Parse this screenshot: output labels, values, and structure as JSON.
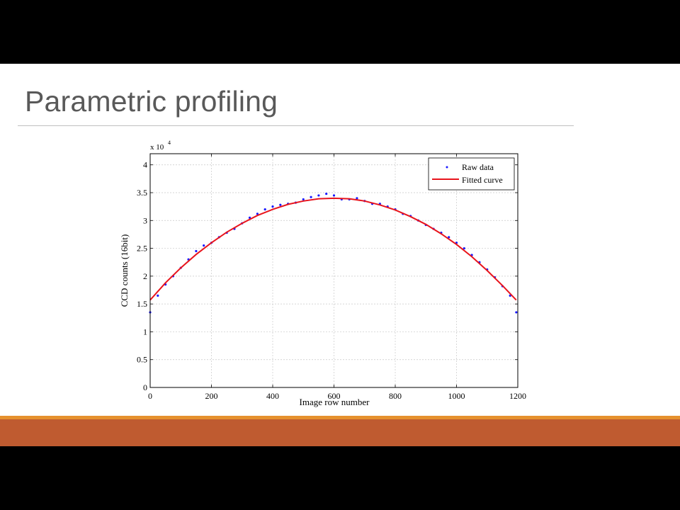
{
  "slide": {
    "title": "Parametric profiling"
  },
  "colors": {
    "raw": "#1a1aff",
    "fit": "#e8141c",
    "accent_orange": "#e6912e",
    "footer": "#bf5b30",
    "title": "#595959"
  },
  "chart_data": {
    "type": "scatter",
    "title": "",
    "xlabel": "Image row number",
    "ylabel": "CCD counts (16bit)",
    "y_multiplier_label": "x 10",
    "y_multiplier_exponent": "4",
    "xlim": [
      0,
      1200
    ],
    "ylim": [
      0,
      4.2
    ],
    "y_scale_factor": 10000,
    "grid": true,
    "legend_position": "top-right",
    "x_ticks": [
      0,
      200,
      400,
      600,
      800,
      1000,
      1200
    ],
    "y_ticks": [
      0,
      0.5,
      1,
      1.5,
      2,
      2.5,
      3,
      3.5,
      4
    ],
    "series": [
      {
        "name": "Raw data",
        "type": "scatter",
        "x": [
          0,
          25,
          50,
          75,
          100,
          125,
          150,
          175,
          200,
          225,
          250,
          275,
          300,
          325,
          350,
          375,
          400,
          425,
          450,
          475,
          500,
          525,
          550,
          575,
          600,
          625,
          650,
          675,
          700,
          725,
          750,
          775,
          800,
          825,
          850,
          875,
          900,
          925,
          950,
          975,
          1000,
          1025,
          1050,
          1075,
          1100,
          1125,
          1150,
          1175,
          1195
        ],
        "y": [
          1.35,
          1.65,
          1.85,
          2.0,
          2.15,
          2.3,
          2.45,
          2.55,
          2.6,
          2.7,
          2.78,
          2.85,
          2.95,
          3.05,
          3.12,
          3.2,
          3.25,
          3.28,
          3.3,
          3.32,
          3.38,
          3.42,
          3.45,
          3.48,
          3.45,
          3.38,
          3.38,
          3.4,
          3.35,
          3.3,
          3.3,
          3.25,
          3.2,
          3.12,
          3.08,
          3.0,
          2.92,
          2.85,
          2.78,
          2.7,
          2.6,
          2.5,
          2.38,
          2.25,
          2.12,
          1.98,
          1.82,
          1.65,
          1.35
        ]
      },
      {
        "name": "Fitted curve",
        "type": "line",
        "x": [
          0,
          50,
          100,
          150,
          200,
          250,
          300,
          350,
          400,
          450,
          500,
          550,
          600,
          650,
          700,
          750,
          800,
          850,
          900,
          950,
          1000,
          1050,
          1100,
          1150,
          1195
        ],
        "y": [
          1.57,
          1.88,
          2.15,
          2.39,
          2.6,
          2.79,
          2.95,
          3.09,
          3.2,
          3.29,
          3.35,
          3.39,
          3.4,
          3.39,
          3.35,
          3.28,
          3.19,
          3.07,
          2.93,
          2.76,
          2.57,
          2.35,
          2.1,
          1.83,
          1.57
        ]
      }
    ]
  }
}
